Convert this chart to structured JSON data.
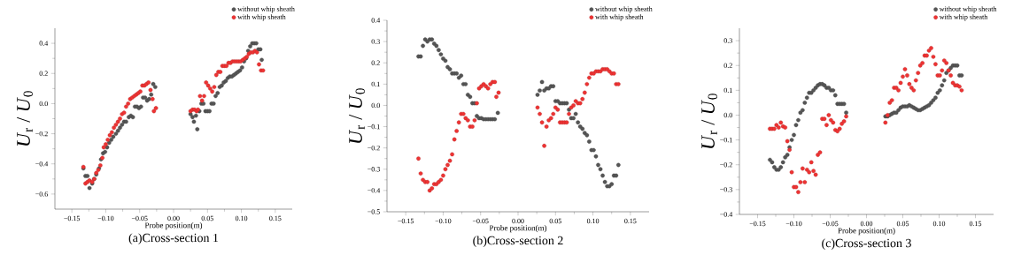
{
  "chart_data": [
    {
      "type": "scatter",
      "title": "(a)Cross-section 1",
      "xlabel": "Probe position(m)",
      "ylabel": "*U*$_{r}$ / *U*$_{0}$",
      "legend": "top right",
      "marker": "circle",
      "xlim": [
        -0.175,
        0.175
      ],
      "ylim": [
        -0.7,
        0.5
      ],
      "xticks": [
        {
          "value": -0.15,
          "label": "−0.15"
        },
        {
          "value": -0.1,
          "label": "−0.10"
        },
        {
          "value": -0.05,
          "label": "−0.05"
        },
        {
          "value": 0,
          "label": "0.00"
        },
        {
          "value": 0.05,
          "label": "0.05"
        },
        {
          "value": 0.1,
          "label": "0.10"
        },
        {
          "value": 0.15,
          "label": "0.15"
        }
      ],
      "yticks": [
        {
          "value": -0.6,
          "label": "−0.6"
        },
        {
          "value": -0.4,
          "label": "−0.4"
        },
        {
          "value": -0.2,
          "label": "−0.2"
        },
        {
          "value": 0,
          "label": "0.0"
        },
        {
          "value": 0.2,
          "label": "0.2"
        },
        {
          "value": 0.4,
          "label": "0.4"
        }
      ],
      "series": [
        {
          "name": "without whip sheath",
          "color": "#555555",
          "x": [
            -0.133,
            -0.13,
            -0.127,
            -0.124,
            -0.12,
            -0.117,
            -0.114,
            -0.11,
            -0.107,
            -0.104,
            -0.101,
            -0.098,
            -0.095,
            -0.092,
            -0.089,
            -0.085,
            -0.082,
            -0.079,
            -0.076,
            -0.073,
            -0.07,
            -0.066,
            -0.063,
            -0.06,
            -0.057,
            -0.054,
            -0.051,
            -0.048,
            -0.045,
            -0.042,
            -0.039,
            -0.036,
            -0.033,
            -0.03,
            -0.027,
            0.025,
            0.028,
            0.03,
            0.033,
            0.035,
            0.038,
            0.041,
            0.044,
            0.047,
            0.05,
            0.053,
            0.056,
            0.059,
            0.062,
            0.065,
            0.068,
            0.071,
            0.074,
            0.077,
            0.08,
            0.083,
            0.086,
            0.089,
            0.092,
            0.095,
            0.098,
            0.101,
            0.104,
            0.107,
            0.11,
            0.113,
            0.116,
            0.119,
            0.122,
            0.125,
            0.128,
            0.13
          ],
          "values": [
            -0.43,
            -0.48,
            -0.48,
            -0.56,
            -0.53,
            -0.5,
            -0.47,
            -0.43,
            -0.37,
            -0.33,
            -0.32,
            -0.29,
            -0.26,
            -0.24,
            -0.22,
            -0.2,
            -0.18,
            -0.16,
            -0.14,
            -0.12,
            -0.12,
            -0.09,
            -0.08,
            -0.09,
            -0.02,
            -0.02,
            -0.03,
            -0.02,
            0.04,
            0.04,
            0.02,
            0.03,
            0.06,
            0.13,
            0.11,
            -0.07,
            -0.09,
            -0.12,
            -0.08,
            -0.17,
            -0.05,
            0.0,
            0.0,
            -0.05,
            -0.05,
            -0.05,
            0.0,
            0.0,
            0.05,
            0.07,
            0.11,
            0.12,
            0.14,
            0.15,
            0.17,
            0.18,
            0.18,
            0.19,
            0.2,
            0.21,
            0.22,
            0.24,
            0.28,
            0.3,
            0.35,
            0.38,
            0.4,
            0.4,
            0.4,
            0.36,
            0.36,
            0.29
          ]
        },
        {
          "name": "with whip sheath",
          "color": "#ee3333",
          "x": [
            -0.133,
            -0.13,
            -0.127,
            -0.124,
            -0.12,
            -0.117,
            -0.114,
            -0.111,
            -0.108,
            -0.105,
            -0.103,
            -0.1,
            -0.097,
            -0.094,
            -0.091,
            -0.088,
            -0.085,
            -0.082,
            -0.079,
            -0.076,
            -0.073,
            -0.07,
            -0.067,
            -0.064,
            -0.061,
            -0.058,
            -0.055,
            -0.052,
            -0.049,
            -0.046,
            -0.043,
            -0.04,
            -0.037,
            -0.034,
            -0.031,
            -0.029,
            -0.026,
            0.025,
            0.028,
            0.031,
            0.034,
            0.036,
            0.039,
            0.042,
            0.045,
            0.048,
            0.051,
            0.054,
            0.057,
            0.06,
            0.063,
            0.066,
            0.069,
            0.072,
            0.075,
            0.078,
            0.081,
            0.084,
            0.087,
            0.09,
            0.093,
            0.096,
            0.099,
            0.102,
            0.105,
            0.108,
            0.111,
            0.114,
            0.117,
            0.12,
            0.123,
            0.126,
            0.129,
            0.132
          ],
          "values": [
            -0.42,
            -0.53,
            -0.52,
            -0.51,
            -0.52,
            -0.5,
            -0.46,
            -0.44,
            -0.41,
            -0.36,
            -0.29,
            -0.27,
            -0.24,
            -0.21,
            -0.19,
            -0.16,
            -0.14,
            -0.12,
            -0.1,
            -0.07,
            -0.06,
            -0.02,
            0.0,
            0.03,
            0.04,
            0.05,
            0.06,
            0.07,
            0.08,
            0.12,
            0.12,
            0.13,
            0.14,
            0.09,
            0.03,
            -0.05,
            -0.03,
            -0.05,
            -0.04,
            -0.04,
            -0.05,
            -0.04,
            0.05,
            0.02,
            0.05,
            0.14,
            0.12,
            0.1,
            0.08,
            0.11,
            0.19,
            0.21,
            0.21,
            0.25,
            0.25,
            0.25,
            0.27,
            0.27,
            0.28,
            0.28,
            0.28,
            0.28,
            0.28,
            0.29,
            0.3,
            0.31,
            0.33,
            0.34,
            0.34,
            0.35,
            0.34,
            0.26,
            0.22,
            0.22
          ]
        }
      ]
    },
    {
      "type": "scatter",
      "title": "(b)Cross-section 2",
      "xlabel": "Probe position(m)",
      "ylabel": "*U*$_{r}$ / *U*$_{0}$",
      "legend": "top right",
      "marker": "circle",
      "xlim": [
        -0.175,
        0.175
      ],
      "ylim": [
        -0.5,
        0.4
      ],
      "xticks": [
        {
          "value": -0.15,
          "label": "−0.15"
        },
        {
          "value": -0.1,
          "label": "−0.10"
        },
        {
          "value": -0.05,
          "label": "−0.05"
        },
        {
          "value": 0,
          "label": "0.00"
        },
        {
          "value": 0.05,
          "label": "0.05"
        },
        {
          "value": 0.1,
          "label": "0.10"
        },
        {
          "value": 0.15,
          "label": "0.15"
        }
      ],
      "yticks": [
        {
          "value": -0.5,
          "label": "−0.5"
        },
        {
          "value": -0.4,
          "label": "−0.4"
        },
        {
          "value": -0.3,
          "label": "−0.3"
        },
        {
          "value": -0.2,
          "label": "−0.2"
        },
        {
          "value": -0.1,
          "label": "−0.1"
        },
        {
          "value": 0,
          "label": "0.0"
        },
        {
          "value": 0.1,
          "label": "0.1"
        },
        {
          "value": 0.2,
          "label": "0.2"
        },
        {
          "value": 0.3,
          "label": "0.3"
        },
        {
          "value": 0.4,
          "label": "0.4"
        }
      ],
      "series": [
        {
          "name": "without whip sheath",
          "color": "#555555",
          "x": [
            -0.133,
            -0.13,
            -0.127,
            -0.124,
            -0.121,
            -0.118,
            -0.115,
            -0.112,
            -0.109,
            -0.106,
            -0.103,
            -0.1,
            -0.097,
            -0.094,
            -0.091,
            -0.088,
            -0.085,
            -0.082,
            -0.079,
            -0.076,
            -0.073,
            -0.07,
            -0.067,
            -0.064,
            -0.061,
            -0.058,
            -0.055,
            -0.052,
            -0.049,
            -0.046,
            -0.043,
            -0.04,
            -0.037,
            -0.034,
            -0.031,
            -0.027,
            0.026,
            0.029,
            0.032,
            0.035,
            0.038,
            0.041,
            0.044,
            0.047,
            0.05,
            0.053,
            0.056,
            0.059,
            0.062,
            0.065,
            0.068,
            0.071,
            0.074,
            0.077,
            0.08,
            0.083,
            0.086,
            0.089,
            0.092,
            0.095,
            0.098,
            0.101,
            0.104,
            0.107,
            0.11,
            0.113,
            0.116,
            0.119,
            0.122,
            0.125,
            0.128,
            0.131,
            0.134
          ],
          "values": [
            0.23,
            0.23,
            0.28,
            0.31,
            0.3,
            0.31,
            0.31,
            0.29,
            0.28,
            0.26,
            0.24,
            0.22,
            0.21,
            0.18,
            0.17,
            0.15,
            0.15,
            0.15,
            0.13,
            0.14,
            0.1,
            0.1,
            0.05,
            0.04,
            0.01,
            0.01,
            -0.05,
            -0.06,
            -0.06,
            -0.065,
            -0.065,
            -0.065,
            -0.065,
            -0.065,
            -0.065,
            -0.035,
            0.05,
            0.07,
            0.11,
            0.07,
            0.08,
            0.08,
            0.09,
            0.09,
            0.02,
            0.02,
            0.01,
            0.01,
            0.01,
            0.01,
            -0.02,
            -0.06,
            -0.06,
            -0.04,
            -0.08,
            -0.1,
            -0.11,
            -0.13,
            -0.14,
            -0.17,
            -0.21,
            -0.21,
            -0.24,
            -0.28,
            -0.3,
            -0.33,
            -0.36,
            -0.38,
            -0.38,
            -0.37,
            -0.33,
            -0.33,
            -0.28
          ]
        },
        {
          "name": "with whip sheath",
          "color": "#ee3333",
          "x": [
            -0.133,
            -0.13,
            -0.127,
            -0.124,
            -0.121,
            -0.118,
            -0.115,
            -0.112,
            -0.109,
            -0.106,
            -0.103,
            -0.1,
            -0.097,
            -0.094,
            -0.091,
            -0.088,
            -0.085,
            -0.082,
            -0.079,
            -0.076,
            -0.073,
            -0.07,
            -0.067,
            -0.064,
            -0.061,
            -0.058,
            -0.055,
            -0.052,
            -0.049,
            -0.046,
            -0.043,
            -0.04,
            -0.037,
            -0.034,
            -0.031,
            -0.029,
            -0.026,
            0.026,
            0.029,
            0.032,
            0.035,
            0.038,
            0.041,
            0.044,
            0.047,
            0.05,
            0.053,
            0.056,
            0.059,
            0.062,
            0.065,
            0.068,
            0.071,
            0.074,
            0.077,
            0.08,
            0.083,
            0.086,
            0.089,
            0.092,
            0.095,
            0.098,
            0.101,
            0.104,
            0.107,
            0.11,
            0.113,
            0.116,
            0.119,
            0.122,
            0.125,
            0.128,
            0.131,
            0.134
          ],
          "values": [
            -0.25,
            -0.32,
            -0.35,
            -0.36,
            -0.36,
            -0.4,
            -0.39,
            -0.37,
            -0.37,
            -0.36,
            -0.35,
            -0.33,
            -0.3,
            -0.28,
            -0.26,
            -0.23,
            -0.16,
            -0.12,
            -0.08,
            -0.04,
            -0.04,
            -0.06,
            -0.07,
            -0.1,
            -0.1,
            -0.07,
            0.01,
            0.08,
            0.09,
            0.1,
            0.09,
            0.08,
            0.1,
            0.11,
            0.11,
            0.04,
            0.06,
            -0.01,
            -0.04,
            -0.08,
            -0.19,
            -0.1,
            -0.07,
            -0.06,
            -0.04,
            -0.01,
            -0.02,
            -0.08,
            -0.08,
            -0.08,
            -0.08,
            -0.04,
            -0.01,
            0.0,
            0.02,
            0.01,
            0.01,
            0.03,
            0.06,
            0.1,
            0.13,
            0.15,
            0.15,
            0.16,
            0.16,
            0.16,
            0.17,
            0.17,
            0.17,
            0.16,
            0.15,
            0.15,
            0.1,
            0.1
          ]
        }
      ]
    },
    {
      "type": "scatter",
      "title": "(c)Cross-section 3",
      "xlabel": "Probe position(m)",
      "ylabel": "*U*$_{r}$ / *U*$_{0}$",
      "legend": "top right",
      "marker": "circle",
      "xlim": [
        -0.175,
        0.175
      ],
      "ylim": [
        -0.4,
        0.35
      ],
      "xticks": [
        {
          "value": -0.15,
          "label": "−0.15"
        },
        {
          "value": -0.1,
          "label": "−0.10"
        },
        {
          "value": -0.05,
          "label": "−0.05"
        },
        {
          "value": 0,
          "label": "0.00"
        },
        {
          "value": 0.05,
          "label": "0.05"
        },
        {
          "value": 0.1,
          "label": "0.10"
        },
        {
          "value": 0.15,
          "label": "0.15"
        }
      ],
      "yticks": [
        {
          "value": -0.4,
          "label": "−0.4"
        },
        {
          "value": -0.3,
          "label": "−0.3"
        },
        {
          "value": -0.2,
          "label": "−0.2"
        },
        {
          "value": -0.1,
          "label": "−0.1"
        },
        {
          "value": 0,
          "label": "0.0"
        },
        {
          "value": 0.1,
          "label": "0.1"
        },
        {
          "value": 0.2,
          "label": "0.2"
        },
        {
          "value": 0.3,
          "label": "0.3"
        }
      ],
      "series": [
        {
          "name": "without whip sheath",
          "color": "#555555",
          "x": [
            -0.133,
            -0.13,
            -0.127,
            -0.124,
            -0.121,
            -0.118,
            -0.115,
            -0.112,
            -0.109,
            -0.106,
            -0.103,
            -0.1,
            -0.097,
            -0.094,
            -0.091,
            -0.088,
            -0.085,
            -0.082,
            -0.079,
            -0.076,
            -0.073,
            -0.07,
            -0.067,
            -0.064,
            -0.061,
            -0.058,
            -0.055,
            -0.052,
            -0.049,
            -0.046,
            -0.043,
            -0.04,
            -0.037,
            -0.034,
            -0.031,
            -0.028,
            0.026,
            0.029,
            0.032,
            0.035,
            0.038,
            0.041,
            0.044,
            0.047,
            0.05,
            0.053,
            0.056,
            0.059,
            0.062,
            0.065,
            0.068,
            0.071,
            0.074,
            0.077,
            0.08,
            0.083,
            0.086,
            0.089,
            0.092,
            0.095,
            0.098,
            0.101,
            0.104,
            0.107,
            0.11,
            0.113,
            0.116,
            0.119,
            0.122,
            0.125,
            0.128,
            0.131
          ],
          "values": [
            -0.18,
            -0.19,
            -0.21,
            -0.22,
            -0.22,
            -0.21,
            -0.19,
            -0.17,
            -0.16,
            -0.13,
            -0.1,
            -0.08,
            -0.04,
            -0.02,
            0.01,
            0.02,
            0.05,
            0.07,
            0.09,
            0.09,
            0.1,
            0.11,
            0.12,
            0.125,
            0.125,
            0.12,
            0.11,
            0.11,
            0.1,
            0.1,
            0.08,
            0.045,
            0.045,
            0.045,
            0.045,
            0.01,
            -0.005,
            -0.005,
            0.0,
            0.005,
            0.01,
            0.01,
            0.02,
            0.03,
            0.035,
            0.035,
            0.035,
            0.04,
            0.035,
            0.03,
            0.025,
            0.02,
            0.02,
            0.025,
            0.03,
            0.035,
            0.04,
            0.05,
            0.06,
            0.07,
            0.09,
            0.1,
            0.12,
            0.14,
            0.17,
            0.18,
            0.19,
            0.2,
            0.2,
            0.2,
            0.16,
            0.16
          ]
        },
        {
          "name": "with whip sheath",
          "color": "#ee3333",
          "x": [
            -0.133,
            -0.13,
            -0.127,
            -0.124,
            -0.121,
            -0.118,
            -0.115,
            -0.112,
            -0.109,
            -0.106,
            -0.103,
            -0.1,
            -0.097,
            -0.094,
            -0.091,
            -0.088,
            -0.085,
            -0.082,
            -0.079,
            -0.076,
            -0.073,
            -0.07,
            -0.067,
            -0.064,
            -0.061,
            -0.058,
            -0.055,
            -0.052,
            -0.049,
            -0.046,
            -0.043,
            -0.04,
            -0.037,
            -0.034,
            -0.031,
            -0.028,
            0.026,
            0.029,
            0.032,
            0.035,
            0.038,
            0.041,
            0.044,
            0.047,
            0.05,
            0.053,
            0.056,
            0.059,
            0.062,
            0.065,
            0.068,
            0.071,
            0.074,
            0.077,
            0.08,
            0.083,
            0.086,
            0.089,
            0.092,
            0.095,
            0.098,
            0.101,
            0.104,
            0.107,
            0.11,
            0.113,
            0.116,
            0.119,
            0.122,
            0.125,
            0.128,
            0.131
          ],
          "values": [
            -0.055,
            -0.055,
            -0.055,
            -0.04,
            -0.05,
            -0.03,
            -0.045,
            -0.05,
            -0.105,
            -0.14,
            -0.23,
            -0.29,
            -0.29,
            -0.31,
            -0.27,
            -0.215,
            -0.27,
            -0.22,
            -0.23,
            -0.19,
            -0.225,
            -0.24,
            -0.16,
            -0.15,
            -0.015,
            -0.015,
            -0.04,
            0.0,
            -0.02,
            -0.03,
            -0.06,
            -0.065,
            -0.055,
            -0.035,
            -0.025,
            -0.005,
            -0.03,
            0.0,
            0.05,
            0.06,
            0.11,
            0.11,
            0.1,
            0.13,
            0.155,
            0.185,
            0.16,
            0.125,
            0.11,
            0.1,
            0.14,
            0.17,
            0.2,
            0.21,
            0.24,
            0.24,
            0.26,
            0.27,
            0.235,
            0.205,
            0.16,
            0.16,
            0.18,
            0.22,
            0.21,
            0.18,
            0.16,
            0.13,
            0.12,
            0.12,
            0.115,
            0.1
          ]
        }
      ]
    }
  ]
}
